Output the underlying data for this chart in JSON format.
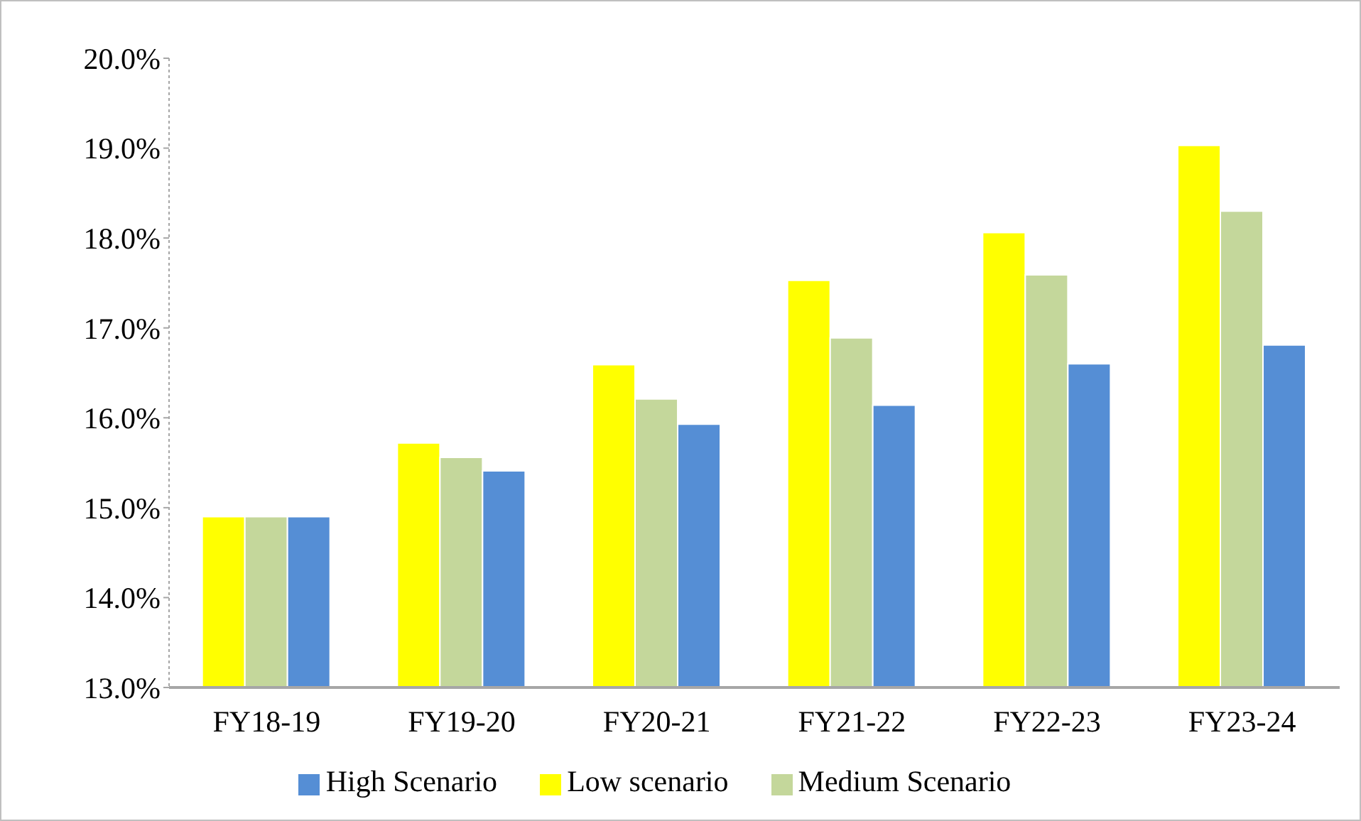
{
  "chart_data": {
    "type": "bar",
    "categories": [
      "FY18-19",
      "FY19-20",
      "FY20-21",
      "FY21-22",
      "FY22-23",
      "FY23-24"
    ],
    "series": [
      {
        "name": "Low scenario",
        "color": "#ffff00",
        "values": [
          14.9,
          15.72,
          16.59,
          17.53,
          18.06,
          19.03
        ]
      },
      {
        "name": "Medium Scenario",
        "color": "#c4d79b",
        "values": [
          14.9,
          15.56,
          16.21,
          16.89,
          17.59,
          18.3
        ]
      },
      {
        "name": "High Scenario",
        "color": "#558ed5",
        "values": [
          14.9,
          15.41,
          15.93,
          16.14,
          16.6,
          16.81
        ]
      }
    ],
    "ylim": [
      13,
      20
    ],
    "yticks": [
      {
        "value": 13,
        "label": "13.0%"
      },
      {
        "value": 14,
        "label": "14.0%"
      },
      {
        "value": 15,
        "label": "15.0%"
      },
      {
        "value": 16,
        "label": "16.0%"
      },
      {
        "value": 17,
        "label": "17.0%"
      },
      {
        "value": 18,
        "label": "18.0%"
      },
      {
        "value": 19,
        "label": "19.0%"
      },
      {
        "value": 20,
        "label": "20.0%"
      }
    ],
    "grid": false,
    "legend": "bottom"
  }
}
